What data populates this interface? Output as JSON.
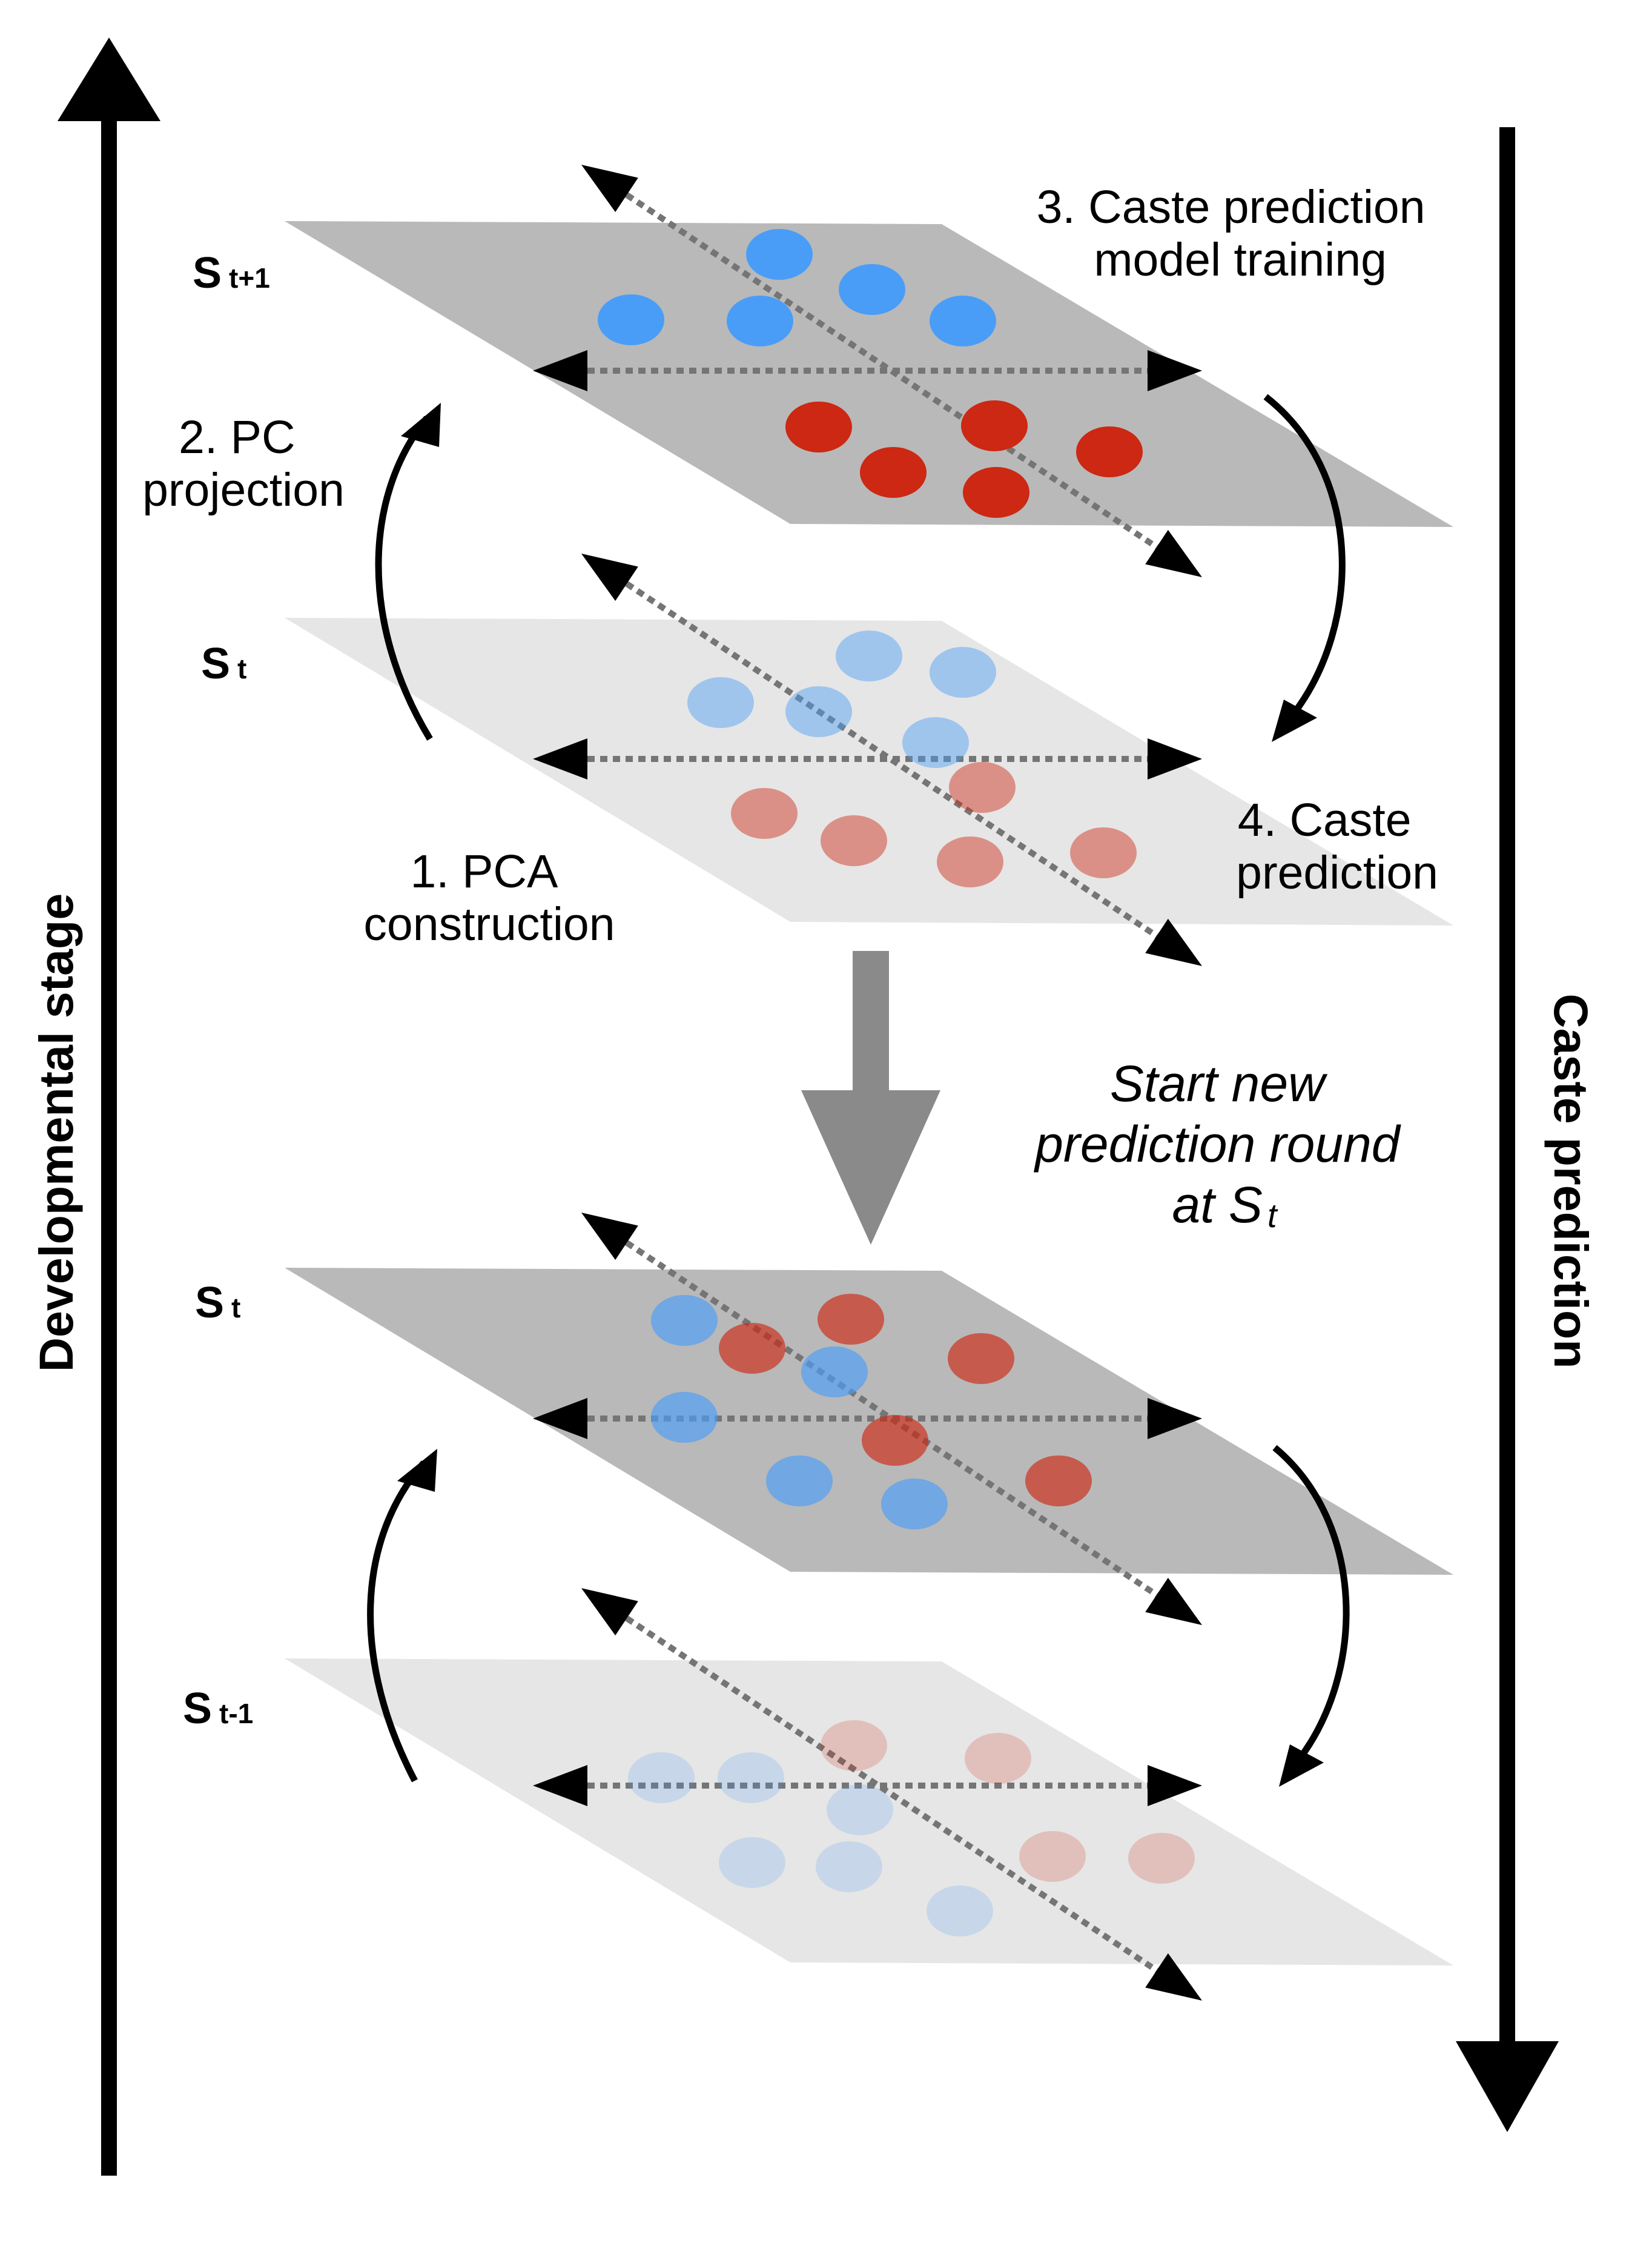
{
  "colors": {
    "plane_dark": "#b9b9b9",
    "plane_light": "#e6e6e6",
    "blue": "#4a9df7",
    "red": "#cc2813",
    "transition_arrow": "#8a8a8a",
    "axis_dots": "#757575"
  },
  "axes": {
    "left_label": "Developmental stage",
    "right_label": "Caste prediction"
  },
  "top_panel": {
    "upper_stage": {
      "main": "S",
      "sub": "t+1"
    },
    "lower_stage": {
      "main": "S",
      "sub": "t"
    },
    "step1": [
      "1. PCA",
      "construction"
    ],
    "step2": [
      "2. PC",
      "projection"
    ],
    "step3": [
      "3. Caste prediction",
      "model training"
    ],
    "step4": [
      "4. Caste",
      "prediction"
    ]
  },
  "transition": {
    "lines": [
      "Start new",
      "prediction round"
    ],
    "last_line": {
      "prefix": "at ",
      "main": "S",
      "sub": "t"
    }
  },
  "bottom_panel": {
    "upper_stage": {
      "main": "S",
      "sub": "t"
    },
    "lower_stage": {
      "main": "S",
      "sub": "t-1"
    }
  }
}
